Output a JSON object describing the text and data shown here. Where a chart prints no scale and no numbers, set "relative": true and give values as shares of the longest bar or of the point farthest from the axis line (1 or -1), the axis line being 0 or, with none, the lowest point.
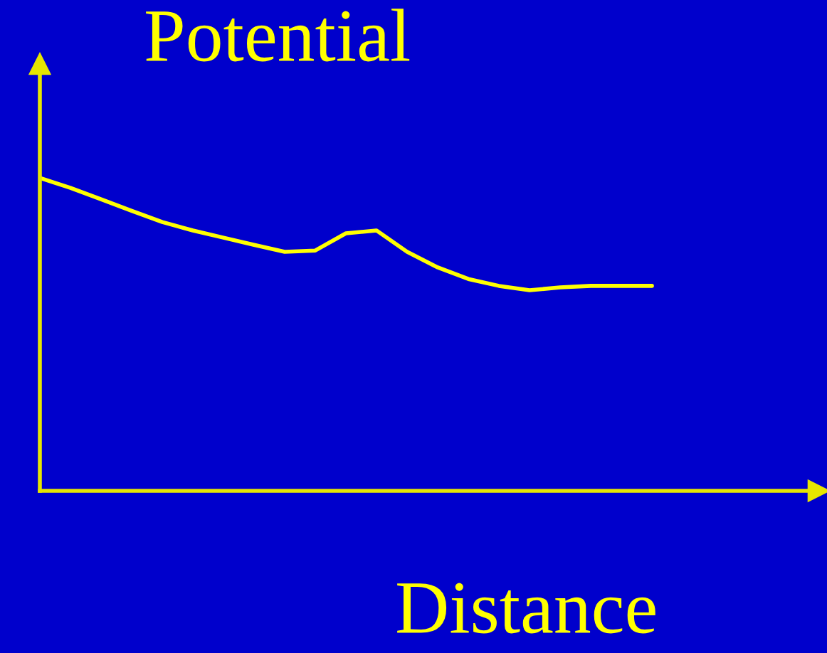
{
  "chart_data": {
    "type": "line",
    "xlabel": "Distance",
    "ylabel": "Potential",
    "relative": true,
    "categories": [
      null,
      null,
      null,
      null,
      null,
      null,
      null,
      null,
      null,
      null,
      null,
      null,
      null,
      null,
      null,
      null,
      null,
      null,
      null,
      null,
      null,
      null,
      null,
      null,
      null,
      null
    ],
    "series": [
      {
        "color": "#ffff00",
        "values": [
          1.0,
          0.968,
          0.932,
          0.895,
          0.859,
          0.832,
          0.809,
          0.786,
          0.764,
          0.768,
          0.823,
          0.832,
          0.764,
          0.714,
          0.677,
          0.655,
          0.641,
          0.65,
          0.655,
          0.655,
          0.655,
          null,
          null,
          null,
          null,
          null
        ]
      }
    ]
  }
}
